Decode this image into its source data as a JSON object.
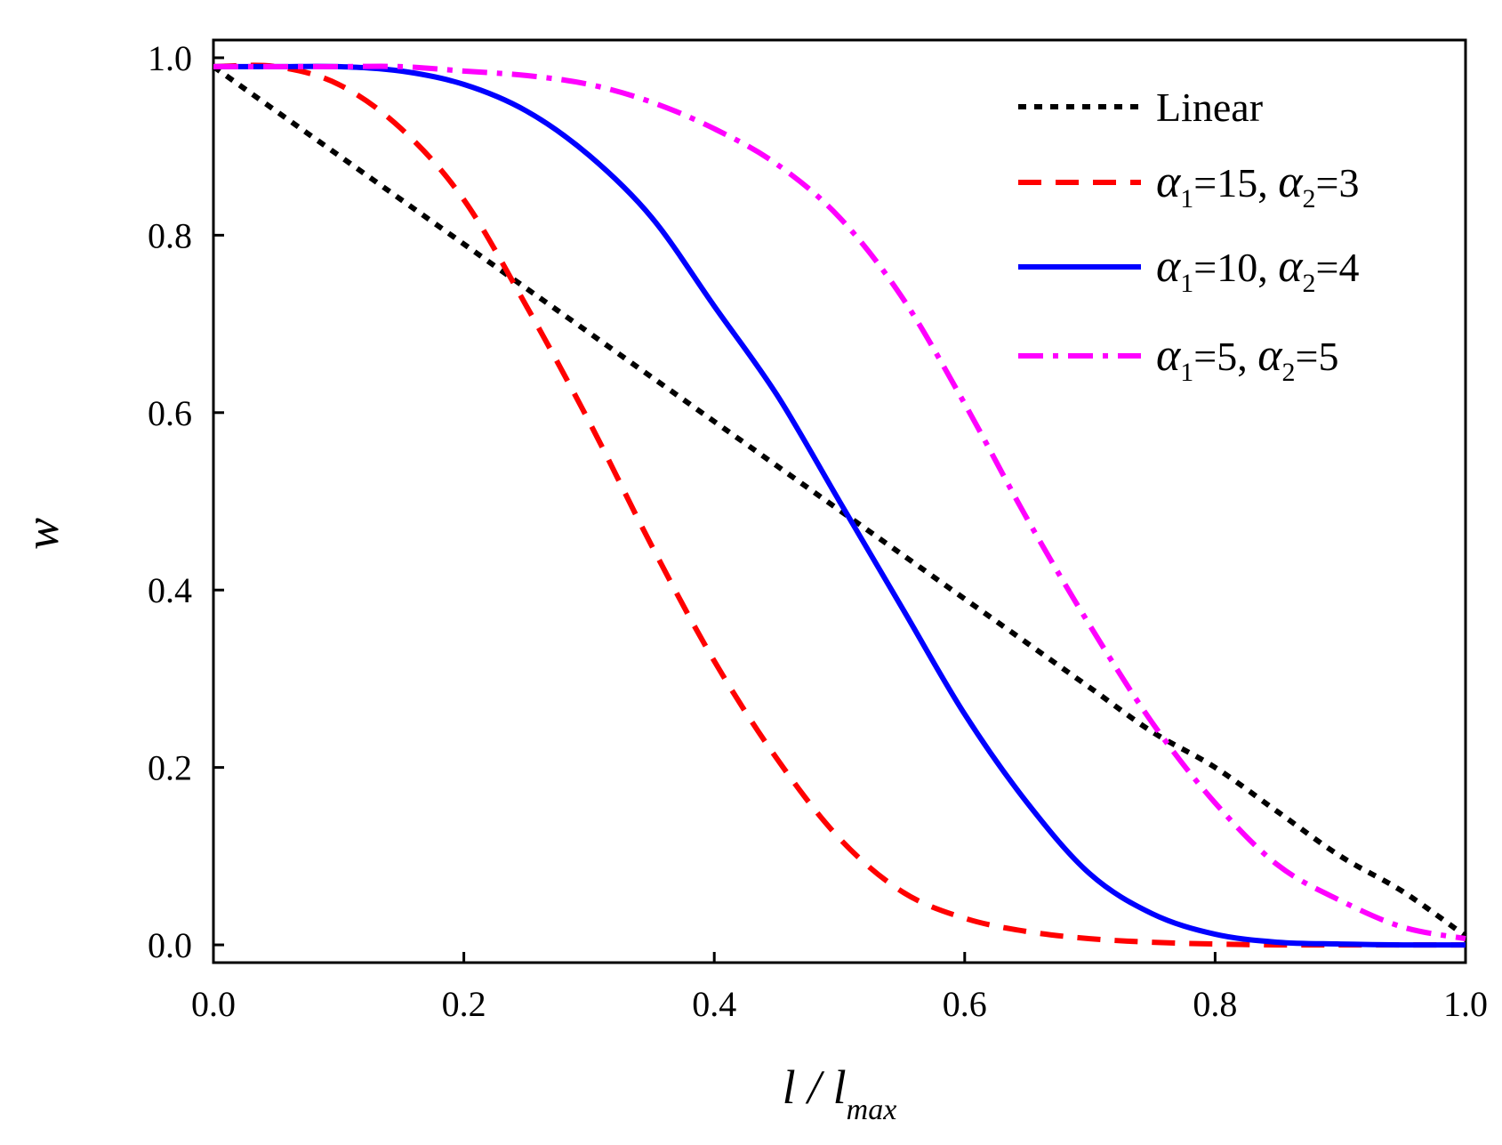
{
  "chart_data": {
    "type": "line",
    "title": "",
    "xlabel": "l / l",
    "xlabel_sub": "max",
    "ylabel": "w",
    "xlim": [
      0.0,
      1.0
    ],
    "ylim": [
      -0.02,
      1.02
    ],
    "x_ticks": [
      0.0,
      0.2,
      0.4,
      0.6,
      0.8,
      1.0
    ],
    "x_tick_labels": [
      "0.0",
      "0.2",
      "0.4",
      "0.6",
      "0.8",
      "1.0"
    ],
    "y_ticks": [
      0.0,
      0.2,
      0.4,
      0.6,
      0.8,
      1.0
    ],
    "y_tick_labels": [
      "0.0",
      "0.2",
      "0.4",
      "0.6",
      "0.8",
      "1.0"
    ],
    "grid": false,
    "legend_position": "top-right",
    "x": [
      0.0,
      0.05,
      0.1,
      0.15,
      0.2,
      0.25,
      0.3,
      0.35,
      0.4,
      0.45,
      0.5,
      0.55,
      0.6,
      0.65,
      0.7,
      0.75,
      0.8,
      0.85,
      0.9,
      0.95,
      1.0
    ],
    "series": [
      {
        "name": "Linear",
        "legend_text": "Linear",
        "color": "#000000",
        "style": "dotted",
        "values": [
          0.99,
          0.94,
          0.89,
          0.84,
          0.79,
          0.74,
          0.69,
          0.64,
          0.59,
          0.54,
          0.49,
          0.44,
          0.39,
          0.34,
          0.29,
          0.24,
          0.2,
          0.15,
          0.1,
          0.06,
          0.01
        ]
      },
      {
        "name": "α1=15, α2=3",
        "legend_parts": {
          "s1": "α",
          "sub1": "1",
          "v1": "=15, ",
          "s2": "α",
          "sub2": "2",
          "v2": "=3"
        },
        "color": "#ff0000",
        "style": "dashed",
        "values": [
          0.99,
          0.99,
          0.97,
          0.92,
          0.84,
          0.72,
          0.59,
          0.45,
          0.32,
          0.21,
          0.12,
          0.06,
          0.03,
          0.015,
          0.007,
          0.003,
          0.001,
          0.0,
          0.0,
          0.0,
          0.0
        ]
      },
      {
        "name": "α1=10, α2=4",
        "legend_parts": {
          "s1": "α",
          "sub1": "1",
          "v1": "=10, ",
          "s2": "α",
          "sub2": "2",
          "v2": "=4"
        },
        "color": "#0000ff",
        "style": "solid",
        "values": [
          0.99,
          0.99,
          0.99,
          0.985,
          0.97,
          0.94,
          0.89,
          0.82,
          0.72,
          0.62,
          0.5,
          0.38,
          0.26,
          0.16,
          0.08,
          0.035,
          0.012,
          0.003,
          0.001,
          0.0,
          0.0
        ]
      },
      {
        "name": "α1=5, α2=5",
        "legend_parts": {
          "s1": "α",
          "sub1": "1",
          "v1": "=5, ",
          "s2": "α",
          "sub2": "2",
          "v2": "=5"
        },
        "color": "#ff00ff",
        "style": "dash-dot",
        "values": [
          0.99,
          0.99,
          0.99,
          0.99,
          0.985,
          0.98,
          0.97,
          0.95,
          0.92,
          0.88,
          0.82,
          0.73,
          0.61,
          0.48,
          0.36,
          0.25,
          0.16,
          0.09,
          0.05,
          0.02,
          0.007
        ]
      }
    ]
  }
}
